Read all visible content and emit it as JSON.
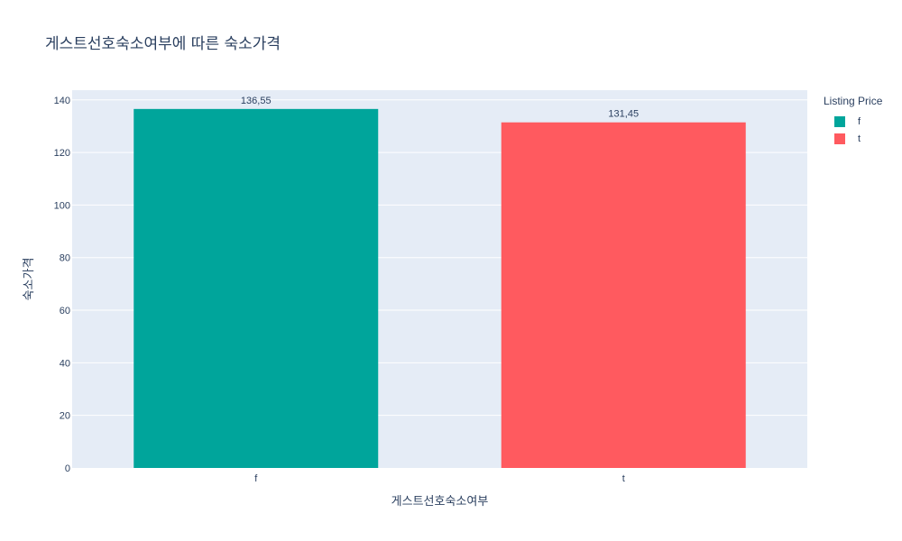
{
  "chart_data": {
    "type": "bar",
    "title": "게스트선호숙소여부에 따른 숙소가격",
    "xlabel": "게스트선호숙소여부",
    "ylabel": "숙소가격",
    "categories": [
      "f",
      "t"
    ],
    "values": [
      136.55,
      131.45
    ],
    "value_labels": [
      "136,55",
      "131,45"
    ],
    "colors": [
      "#00a59b",
      "#ff5a5f"
    ],
    "ylim": [
      0,
      143.7
    ],
    "yticks": [
      0,
      20,
      40,
      60,
      80,
      100,
      120,
      140
    ],
    "grid": true,
    "legend": {
      "title": "Listing Price",
      "position": "top-right",
      "items": [
        "f",
        "t"
      ]
    }
  }
}
